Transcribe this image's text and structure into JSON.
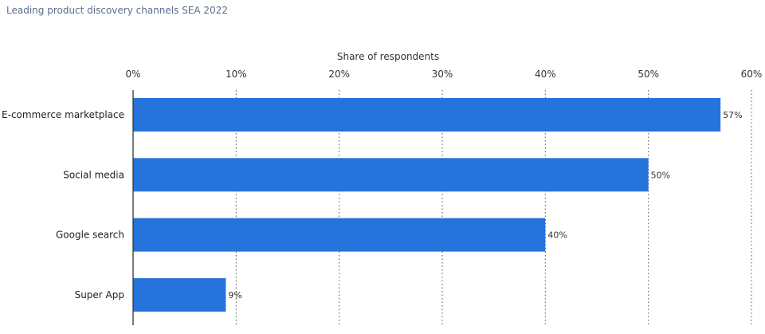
{
  "chart_data": {
    "type": "bar",
    "orientation": "horizontal",
    "title": "Leading product discovery channels SEA 2022",
    "xlabel": "Share of respondents",
    "ylabel": "",
    "categories": [
      "E-commerce marketplace",
      "Social media",
      "Google search",
      "Super App"
    ],
    "values": [
      57,
      50,
      40,
      9
    ],
    "value_labels": [
      "57%",
      "50%",
      "40%",
      "9%"
    ],
    "xlim": [
      0,
      60
    ],
    "ticks": [
      0,
      10,
      20,
      30,
      40,
      50,
      60
    ],
    "tick_labels": [
      "0%",
      "10%",
      "20%",
      "30%",
      "40%",
      "50%",
      "60%"
    ],
    "axis_position": "top",
    "grid": true,
    "legend": "none",
    "bar_color": "#2673db"
  }
}
